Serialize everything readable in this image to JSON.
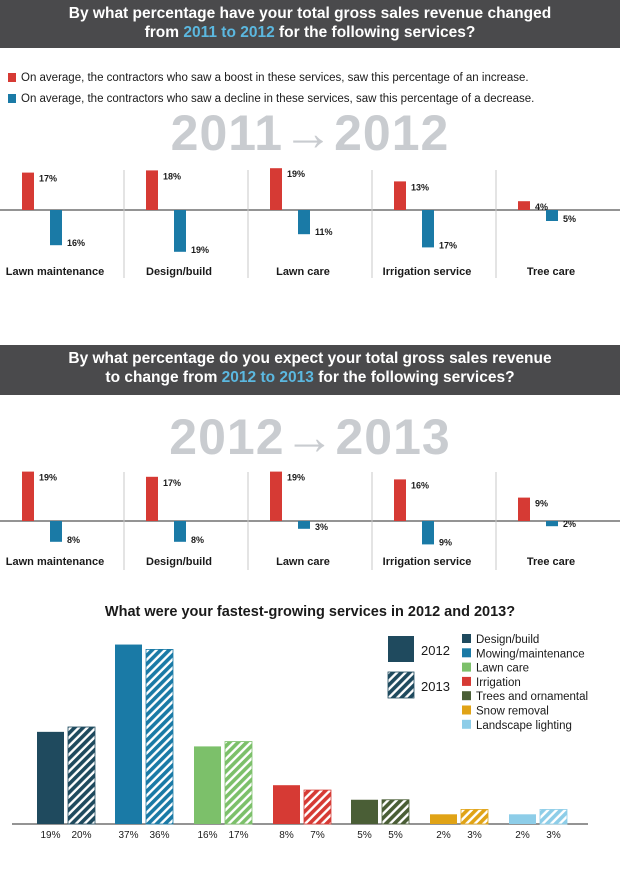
{
  "section1": {
    "question_pre": "By what percentage have your total gross sales revenue changed",
    "question_mid_pre": "from ",
    "question_highlight": "2011 to 2012",
    "question_post": " for the following services?",
    "legend_increase": "On average, the contractors who saw a boost in these services, saw this percentage of an increase.",
    "legend_decrease": "On average, the contractors who saw a decline in these services, saw this percentage of a decrease.",
    "big_year_label": "2011→2012"
  },
  "section2": {
    "question_pre": "By what percentage do you expect your total gross sales revenue",
    "question_mid_pre": "to change from ",
    "question_highlight": "2012 to 2013",
    "question_post": " for the following services?",
    "big_year_label": "2012→2013"
  },
  "colors": {
    "increase": "#d63a34",
    "decrease": "#1a7aa6",
    "header_bg": "#4a4a4c",
    "header_highlight": "#5bb8e0",
    "big_year": "#c9ccd0"
  },
  "chart_data": [
    {
      "type": "bar",
      "categories": [
        "Lawn maintenance",
        "Design/build",
        "Lawn care",
        "Irrigation service",
        "Tree care"
      ],
      "series": [
        {
          "name": "increase",
          "values": [
            17,
            18,
            19,
            13,
            4
          ],
          "labels": [
            "17%",
            "18%",
            "19%",
            "13%",
            "4%"
          ]
        },
        {
          "name": "decrease",
          "values": [
            16,
            19,
            11,
            17,
            5
          ],
          "labels": [
            "16%",
            "19%",
            "11%",
            "17%",
            "5%"
          ]
        }
      ]
    },
    {
      "type": "bar",
      "categories": [
        "Lawn maintenance",
        "Design/build",
        "Lawn care",
        "Irrigation service",
        "Tree care"
      ],
      "series": [
        {
          "name": "increase",
          "values": [
            19,
            17,
            19,
            16,
            9
          ],
          "labels": [
            "19%",
            "17%",
            "19%",
            "16%",
            "9%"
          ]
        },
        {
          "name": "decrease",
          "values": [
            8,
            8,
            3,
            9,
            2
          ],
          "labels": [
            "8%",
            "8%",
            "3%",
            "9%",
            "2%"
          ]
        }
      ]
    },
    {
      "type": "bar",
      "title": "What were your fastest-growing services in 2012 and 2013?",
      "categories": [
        "Design/build",
        "Mowing/maintenance",
        "Lawn care",
        "Irrigation",
        "Trees and ornamental",
        "Snow removal",
        "Landscape lighting"
      ],
      "category_colors": [
        "#1f4a5e",
        "#1a7aa6",
        "#7cc06a",
        "#d63a34",
        "#4a5e36",
        "#e0a316",
        "#8dcde8"
      ],
      "series": [
        {
          "name": "2012",
          "values": [
            19,
            37,
            16,
            8,
            5,
            2,
            2
          ],
          "labels": [
            "19%",
            "37%",
            "16%",
            "8%",
            "5%",
            "2%",
            "2%"
          ]
        },
        {
          "name": "2013",
          "values": [
            20,
            36,
            17,
            7,
            5,
            3,
            3
          ],
          "labels": [
            "20%",
            "36%",
            "17%",
            "7%",
            "5%",
            "3%",
            "3%"
          ]
        }
      ],
      "legend_years": [
        "2012",
        "2013"
      ],
      "legend_placement": "top-right"
    }
  ]
}
